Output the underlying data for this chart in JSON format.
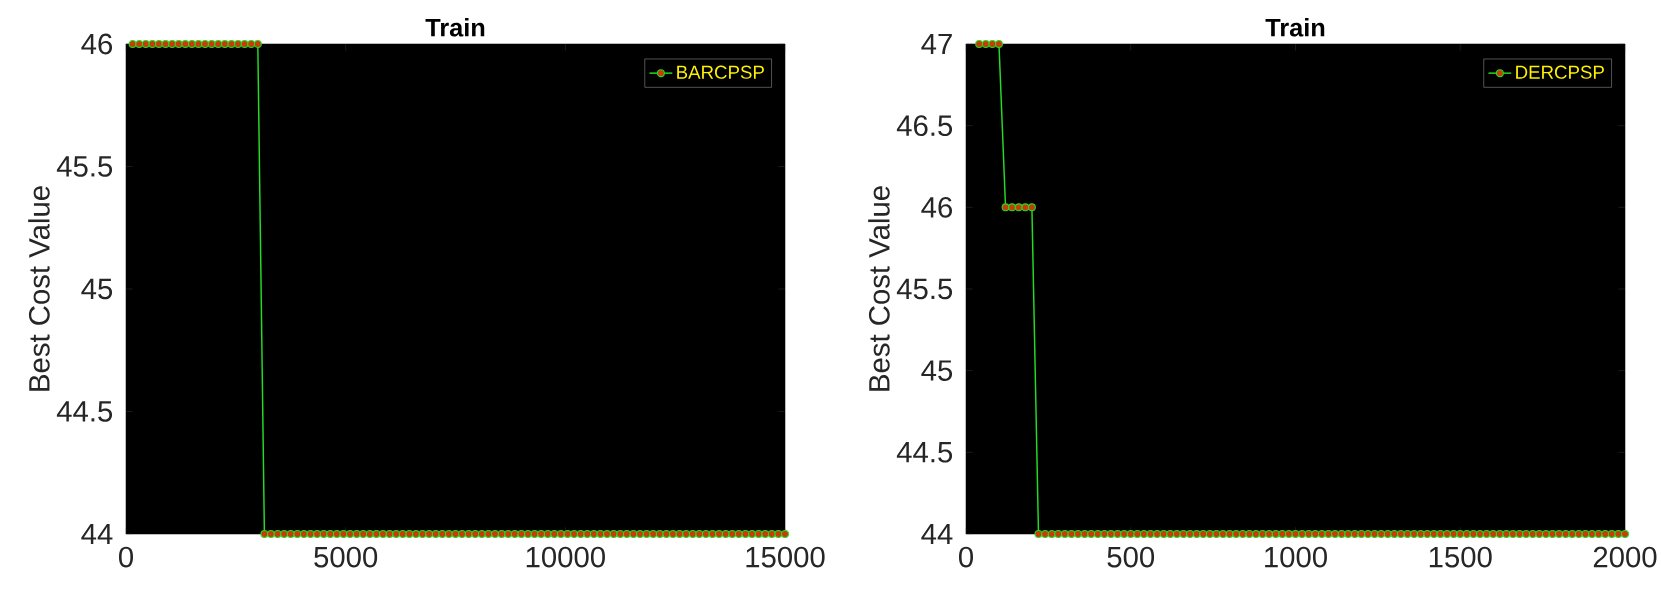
{
  "chart_data": [
    {
      "type": "line",
      "title": "Train",
      "ylabel": "Best Cost Value",
      "xlim": [
        0,
        15000
      ],
      "ylim": [
        44,
        46
      ],
      "xticks": [
        0,
        5000,
        10000,
        15000
      ],
      "yticks": [
        44,
        44.5,
        45,
        45.5,
        46
      ],
      "legend": "top right",
      "marker": "circle",
      "line_style": "solid",
      "x": [
        150,
        300,
        450,
        600,
        750,
        900,
        1050,
        1200,
        1350,
        1500,
        1650,
        1800,
        1950,
        2100,
        2250,
        2400,
        2550,
        2700,
        2850,
        3000,
        3150,
        3300,
        3450,
        3600,
        3750,
        3900,
        4050,
        4200,
        4350,
        4500,
        4650,
        4800,
        4950,
        5100,
        5250,
        5400,
        5550,
        5700,
        5850,
        6000,
        6150,
        6300,
        6450,
        6600,
        6750,
        6900,
        7050,
        7200,
        7350,
        7500,
        7650,
        7800,
        7950,
        8100,
        8250,
        8400,
        8550,
        8700,
        8850,
        9000,
        9150,
        9300,
        9450,
        9600,
        9750,
        9900,
        10050,
        10200,
        10350,
        10500,
        10650,
        10800,
        10950,
        11100,
        11250,
        11400,
        11550,
        11700,
        11850,
        12000,
        12150,
        12300,
        12450,
        12600,
        12750,
        12900,
        13050,
        13200,
        13350,
        13500,
        13650,
        13800,
        13950,
        14100,
        14250,
        14400,
        14550,
        14700,
        14850,
        15000
      ],
      "series": [
        {
          "name": "BARCPSP",
          "color": "#22dd22",
          "values": [
            46,
            46,
            46,
            46,
            46,
            46,
            46,
            46,
            46,
            46,
            46,
            46,
            46,
            46,
            46,
            46,
            46,
            46,
            46,
            46,
            44,
            44,
            44,
            44,
            44,
            44,
            44,
            44,
            44,
            44,
            44,
            44,
            44,
            44,
            44,
            44,
            44,
            44,
            44,
            44,
            44,
            44,
            44,
            44,
            44,
            44,
            44,
            44,
            44,
            44,
            44,
            44,
            44,
            44,
            44,
            44,
            44,
            44,
            44,
            44,
            44,
            44,
            44,
            44,
            44,
            44,
            44,
            44,
            44,
            44,
            44,
            44,
            44,
            44,
            44,
            44,
            44,
            44,
            44,
            44,
            44,
            44,
            44,
            44,
            44,
            44,
            44,
            44,
            44,
            44,
            44,
            44,
            44,
            44,
            44,
            44,
            44,
            44,
            44,
            44
          ]
        }
      ]
    },
    {
      "type": "line",
      "title": "Train",
      "ylabel": "Best Cost Value",
      "xlim": [
        0,
        2000
      ],
      "ylim": [
        44,
        47
      ],
      "xticks": [
        0,
        500,
        1000,
        1500,
        2000
      ],
      "yticks": [
        44,
        44.5,
        45,
        45.5,
        46,
        46.5,
        47
      ],
      "legend": "top right",
      "marker": "circle",
      "line_style": "solid",
      "x": [
        40,
        60,
        80,
        100,
        120,
        140,
        160,
        180,
        200,
        220,
        240,
        260,
        280,
        300,
        320,
        340,
        360,
        380,
        400,
        420,
        440,
        460,
        480,
        500,
        520,
        540,
        560,
        580,
        600,
        620,
        640,
        660,
        680,
        700,
        720,
        740,
        760,
        780,
        800,
        820,
        840,
        860,
        880,
        900,
        920,
        940,
        960,
        980,
        1000,
        1020,
        1040,
        1060,
        1080,
        1100,
        1120,
        1140,
        1160,
        1180,
        1200,
        1220,
        1240,
        1260,
        1280,
        1300,
        1320,
        1340,
        1360,
        1380,
        1400,
        1420,
        1440,
        1460,
        1480,
        1500,
        1520,
        1540,
        1560,
        1580,
        1600,
        1620,
        1640,
        1660,
        1680,
        1700,
        1720,
        1740,
        1760,
        1780,
        1800,
        1820,
        1840,
        1860,
        1880,
        1900,
        1920,
        1940,
        1960,
        1980,
        2000
      ],
      "series": [
        {
          "name": "DERCPSP",
          "color": "#22dd22",
          "values": [
            47,
            47,
            47,
            47,
            46,
            46,
            46,
            46,
            46,
            44,
            44,
            44,
            44,
            44,
            44,
            44,
            44,
            44,
            44,
            44,
            44,
            44,
            44,
            44,
            44,
            44,
            44,
            44,
            44,
            44,
            44,
            44,
            44,
            44,
            44,
            44,
            44,
            44,
            44,
            44,
            44,
            44,
            44,
            44,
            44,
            44,
            44,
            44,
            44,
            44,
            44,
            44,
            44,
            44,
            44,
            44,
            44,
            44,
            44,
            44,
            44,
            44,
            44,
            44,
            44,
            44,
            44,
            44,
            44,
            44,
            44,
            44,
            44,
            44,
            44,
            44,
            44,
            44,
            44,
            44,
            44,
            44,
            44,
            44,
            44,
            44,
            44,
            44,
            44,
            44,
            44,
            44,
            44,
            44,
            44,
            44,
            44,
            44,
            44
          ]
        }
      ]
    }
  ]
}
